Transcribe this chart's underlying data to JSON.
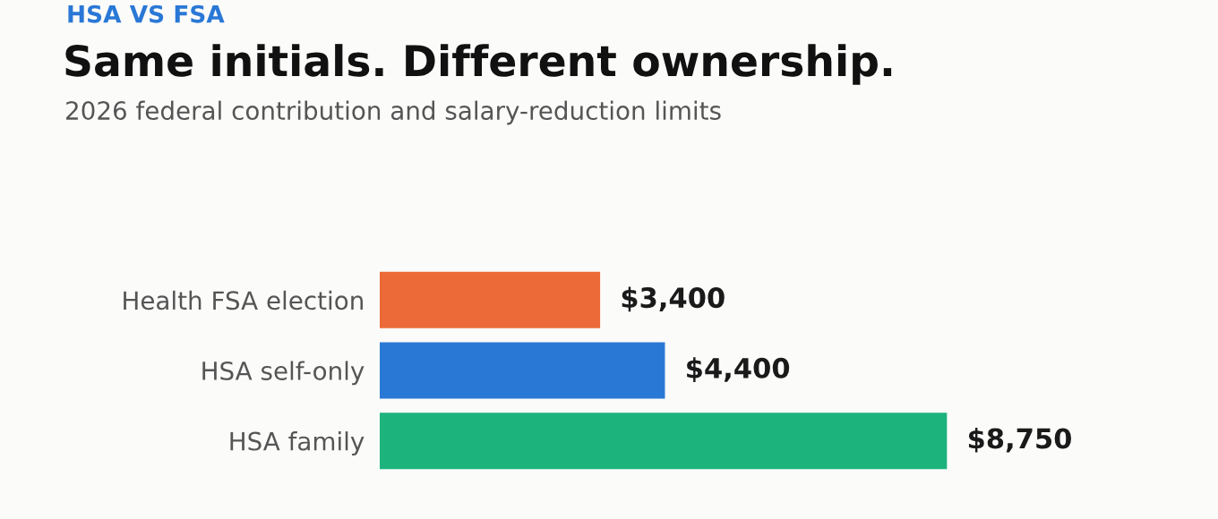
{
  "chart_data": {
    "type": "bar",
    "orientation": "horizontal",
    "title": "Same initials. Different ownership.",
    "subtitle": "2026 federal contribution and salary-reduction limits",
    "annotations": [
      "HSA VS FSA"
    ],
    "categories": [
      "Health FSA election",
      "HSA self-only",
      "HSA family"
    ],
    "values": [
      3400,
      4400,
      8750
    ],
    "colors": [
      "#ec6a37",
      "#2a78d6",
      "#1db37c"
    ],
    "value_labels": [
      "$3,400",
      "$4,400",
      "$8,750"
    ]
  }
}
